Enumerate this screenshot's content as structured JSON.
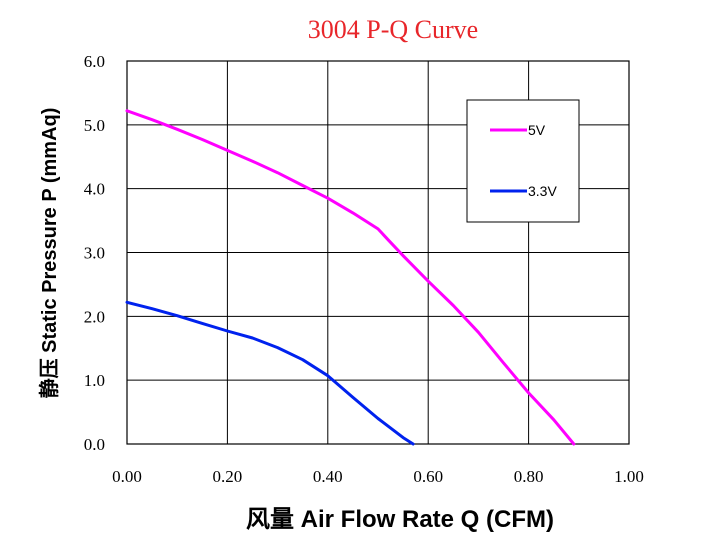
{
  "chart_data": {
    "type": "line",
    "title": "3004 P-Q Curve",
    "xlabel": "风量 Air Flow Rate Q  (CFM)",
    "ylabel": "静压 Static Pressure  P (mmAq)",
    "xlim": [
      0,
      1.0
    ],
    "ylim": [
      0,
      6.0
    ],
    "xticks": [
      "0.00",
      "0.20",
      "0.40",
      "0.60",
      "0.80",
      "1.00"
    ],
    "yticks": [
      "0.0",
      "1.0",
      "2.0",
      "3.0",
      "4.0",
      "5.0",
      "6.0"
    ],
    "grid": true,
    "legend_position": "top-right",
    "series": [
      {
        "name": "5V",
        "color": "#ff00ff",
        "x": [
          0.0,
          0.05,
          0.1,
          0.15,
          0.2,
          0.25,
          0.3,
          0.35,
          0.4,
          0.45,
          0.5,
          0.52,
          0.55,
          0.6,
          0.65,
          0.7,
          0.75,
          0.8,
          0.85,
          0.89
        ],
        "y": [
          5.22,
          5.08,
          4.93,
          4.77,
          4.6,
          4.43,
          4.25,
          4.05,
          3.85,
          3.62,
          3.37,
          3.2,
          2.95,
          2.55,
          2.17,
          1.75,
          1.27,
          0.8,
          0.38,
          0.0
        ]
      },
      {
        "name": "3.3V",
        "color": "#0022ee",
        "x": [
          0.0,
          0.05,
          0.1,
          0.15,
          0.2,
          0.25,
          0.3,
          0.35,
          0.4,
          0.45,
          0.5,
          0.55,
          0.57
        ],
        "y": [
          2.22,
          2.12,
          2.01,
          1.89,
          1.77,
          1.66,
          1.51,
          1.32,
          1.07,
          0.73,
          0.4,
          0.1,
          0.0
        ]
      }
    ]
  }
}
